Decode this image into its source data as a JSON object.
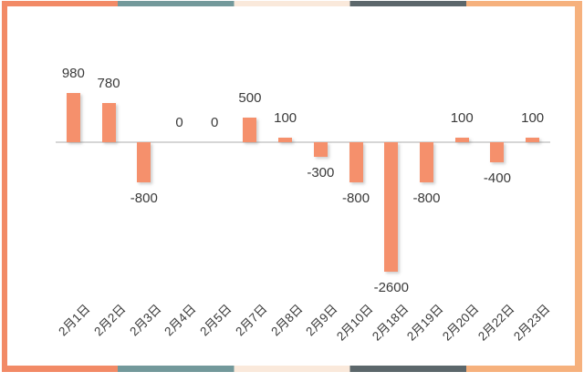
{
  "page": {
    "background": "#ffffff"
  },
  "frame": {
    "segment_colors": [
      "#F28A66",
      "#73999B",
      "#FAE9DB",
      "#5C676B",
      "#F6B17D"
    ],
    "left_color": "#F28A66",
    "right_color": "#F6B17D"
  },
  "chart_data": {
    "type": "bar",
    "title": "",
    "xlabel": "",
    "ylabel": "",
    "categories": [
      "2月1日",
      "2月2日",
      "2月3日",
      "2月4日",
      "2月5日",
      "2月7日",
      "2月8日",
      "2月9日",
      "2月10日",
      "2月18日",
      "2月19日",
      "2月20日",
      "2月22日",
      "2月23日"
    ],
    "values": [
      980,
      780,
      -800,
      0,
      0,
      500,
      100,
      -300,
      -800,
      -2600,
      -800,
      100,
      -400,
      100
    ],
    "data_labels": [
      "980",
      "780",
      "-800",
      "0",
      "0",
      "500",
      "100",
      "-300",
      "-800",
      "-2600",
      "-800",
      "100",
      "-400",
      "100"
    ],
    "ylim": [
      -2600,
      980
    ],
    "grid": false,
    "legend": "none",
    "x_label_rotation_deg": 45,
    "bar_color": "#F5906C",
    "baseline_color": "#D6D6D6",
    "text_color": "#3A3A3A"
  }
}
